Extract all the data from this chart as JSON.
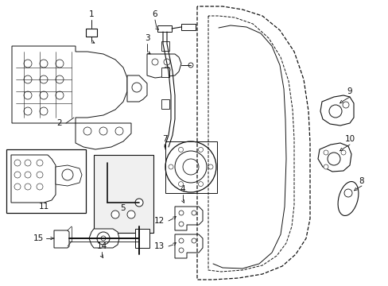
{
  "background_color": "#ffffff",
  "line_color": "#111111",
  "figsize": [
    4.89,
    3.6
  ],
  "dpi": 100
}
